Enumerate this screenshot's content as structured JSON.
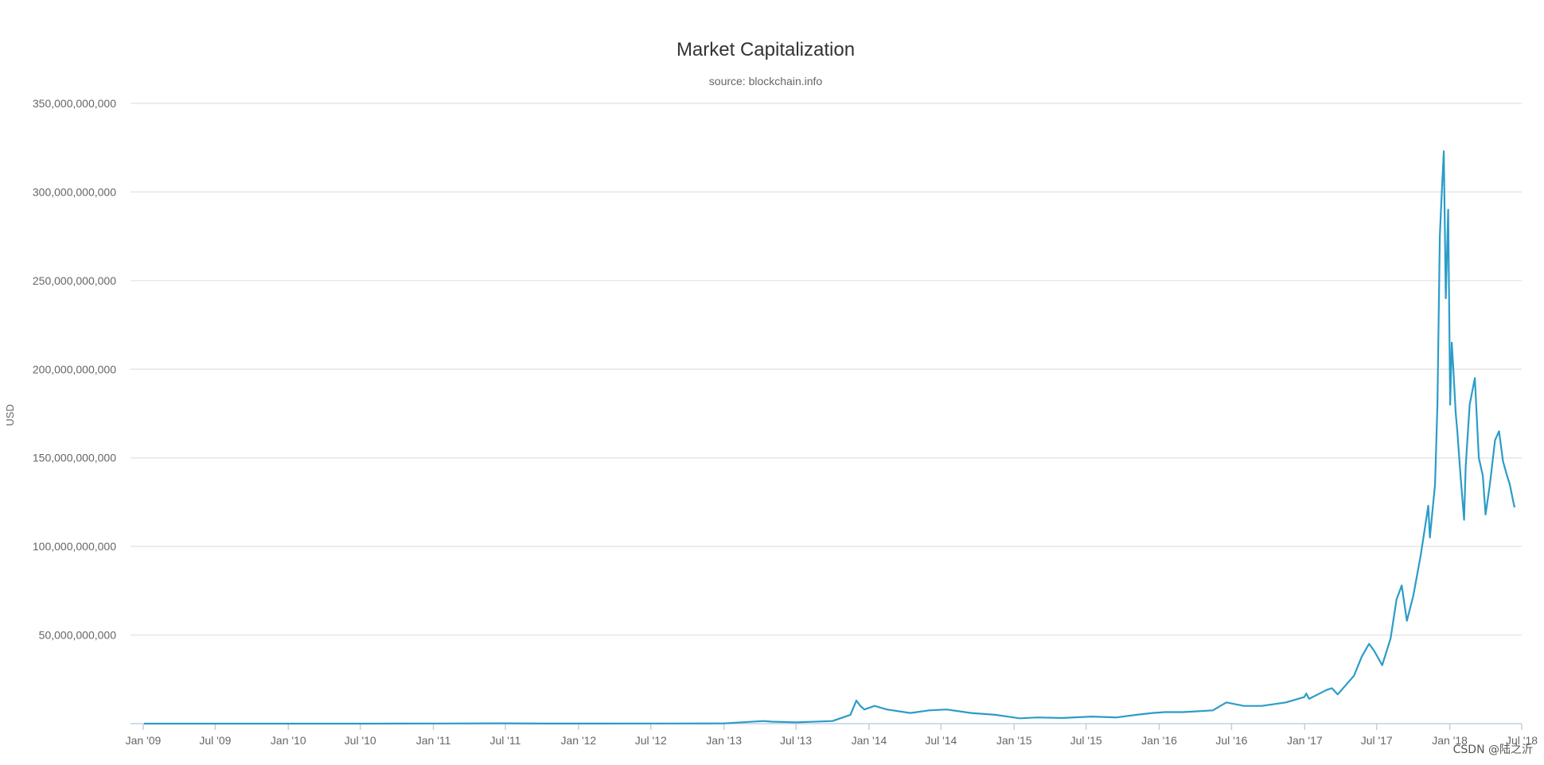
{
  "colors": {
    "line": "#2b9cc8",
    "grid": "#e6e6e6",
    "axis": "#c0d0e0",
    "tick_text": "#666666",
    "title_text": "#333333"
  },
  "watermark": "CSDN @陆之沂",
  "chart_data": {
    "type": "line",
    "title": "Market Capitalization",
    "subtitle": "source: blockchain.info",
    "xlabel": "",
    "ylabel": "USD",
    "grid": true,
    "legend": "none",
    "xlim": [
      "2009-01-01",
      "2018-07-01"
    ],
    "ylim": [
      0,
      350000000000
    ],
    "y_ticks": [
      0,
      50000000000,
      100000000000,
      150000000000,
      200000000000,
      250000000000,
      300000000000,
      350000000000
    ],
    "y_tick_labels": [
      "",
      "50,000,000,000",
      "100,000,000,000",
      "150,000,000,000",
      "200,000,000,000",
      "250,000,000,000",
      "300,000,000,000",
      "350,000,000,000"
    ],
    "x_ticks": [
      "2009-01-01",
      "2009-07-01",
      "2010-01-01",
      "2010-07-01",
      "2011-01-01",
      "2011-07-01",
      "2012-01-01",
      "2012-07-01",
      "2013-01-01",
      "2013-07-01",
      "2014-01-01",
      "2014-07-01",
      "2015-01-01",
      "2015-07-01",
      "2016-01-01",
      "2016-07-01",
      "2017-01-01",
      "2017-07-01",
      "2018-01-01",
      "2018-07-01"
    ],
    "x_tick_labels": [
      "Jan '09",
      "Jul '09",
      "Jan '10",
      "Jul '10",
      "Jan '11",
      "Jul '11",
      "Jan '12",
      "Jul '12",
      "Jan '13",
      "Jul '13",
      "Jan '14",
      "Jul '14",
      "Jan '15",
      "Jul '15",
      "Jan '16",
      "Jul '16",
      "Jan '17",
      "Jul '17",
      "Jan '18",
      "Jul '18"
    ],
    "series": [
      {
        "x": [
          "2009-01-03",
          "2010-07-15",
          "2011-02-01",
          "2011-06-10",
          "2011-10-15",
          "2012-01-01",
          "2012-08-15",
          "2013-01-01",
          "2013-04-10",
          "2013-05-01",
          "2013-07-01",
          "2013-10-01",
          "2013-11-15",
          "2013-11-30",
          "2013-12-10",
          "2013-12-20",
          "2014-01-15",
          "2014-02-15",
          "2014-04-15",
          "2014-06-01",
          "2014-07-15",
          "2014-09-15",
          "2014-11-15",
          "2015-01-15",
          "2015-03-01",
          "2015-05-01",
          "2015-07-15",
          "2015-09-15",
          "2015-11-05",
          "2015-12-15",
          "2016-01-15",
          "2016-03-01",
          "2016-05-15",
          "2016-06-18",
          "2016-08-01",
          "2016-09-15",
          "2016-11-15",
          "2016-12-31",
          "2017-01-05",
          "2017-01-12",
          "2017-02-25",
          "2017-03-10",
          "2017-03-25",
          "2017-05-05",
          "2017-05-25",
          "2017-06-12",
          "2017-06-25",
          "2017-07-15",
          "2017-08-05",
          "2017-08-20",
          "2017-09-02",
          "2017-09-15",
          "2017-10-01",
          "2017-10-20",
          "2017-11-08",
          "2017-11-12",
          "2017-11-25",
          "2017-12-01",
          "2017-12-07",
          "2017-12-12",
          "2017-12-17",
          "2017-12-22",
          "2017-12-28",
          "2018-01-02",
          "2018-01-06",
          "2018-01-10",
          "2018-01-16",
          "2018-01-20",
          "2018-01-28",
          "2018-02-06",
          "2018-02-10",
          "2018-02-20",
          "2018-03-05",
          "2018-03-15",
          "2018-03-25",
          "2018-04-01",
          "2018-04-12",
          "2018-04-25",
          "2018-05-05",
          "2018-05-15",
          "2018-05-25",
          "2018-06-01",
          "2018-06-10",
          "2018-06-13"
        ],
        "y": [
          0,
          10000000,
          100000000,
          200000000,
          30000000,
          50000000,
          100000000,
          150000000,
          1500000000,
          1100000000,
          700000000,
          1500000000,
          5000000000,
          13000000000,
          10000000000,
          8000000000,
          10000000000,
          8000000000,
          6000000000,
          7500000000,
          8000000000,
          6000000000,
          5000000000,
          3000000000,
          3500000000,
          3200000000,
          4000000000,
          3500000000,
          5000000000,
          6000000000,
          6500000000,
          6500000000,
          7500000000,
          12000000000,
          10000000000,
          10000000000,
          12000000000,
          15000000000,
          17000000000,
          14000000000,
          19000000000,
          20000000000,
          16500000000,
          27000000000,
          38000000000,
          45000000000,
          41000000000,
          33000000000,
          48000000000,
          70000000000,
          78000000000,
          58000000000,
          72000000000,
          95000000000,
          123000000000,
          105000000000,
          135000000000,
          180000000000,
          275000000000,
          300000000000,
          323000000000,
          240000000000,
          290000000000,
          180000000000,
          215000000000,
          200000000000,
          175000000000,
          165000000000,
          140000000000,
          115000000000,
          145000000000,
          180000000000,
          195000000000,
          150000000000,
          140000000000,
          118000000000,
          135000000000,
          160000000000,
          165000000000,
          148000000000,
          140000000000,
          135000000000,
          125000000000,
          122000000000
        ]
      }
    ]
  }
}
